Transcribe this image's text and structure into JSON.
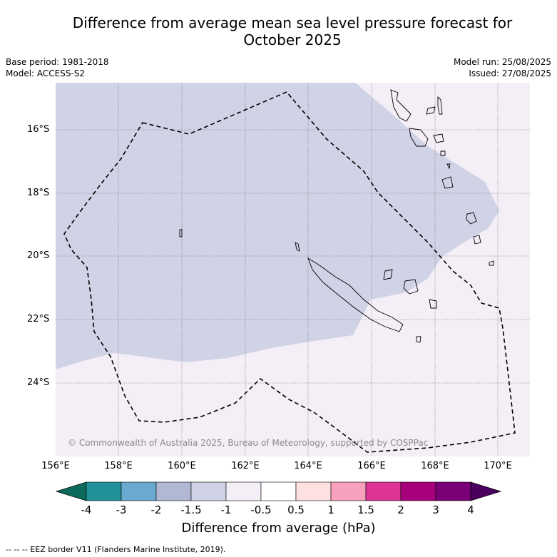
{
  "title_line1": "Difference from average mean sea level pressure forecast for",
  "title_line2": "October 2025",
  "base_period": "Base period: 1981-2018",
  "model": "Model: ACCESS-S2",
  "model_run": "Model run: 25/08/2025",
  "issued": "Issued: 27/08/2025",
  "copyright": "© Commonwealth of Australia 2025, Bureau of Meteorology, supported by COSPPac",
  "lat_labels": [
    "16°S",
    "18°S",
    "20°S",
    "22°S",
    "24°S"
  ],
  "lon_labels": [
    "156°E",
    "158°E",
    "160°E",
    "162°E",
    "164°E",
    "166°E",
    "168°E",
    "170°E"
  ],
  "colorbar": {
    "ticks": [
      "-4",
      "-3",
      "-2",
      "-1.5",
      "-1",
      "-0.5",
      "0.5",
      "1",
      "1.5",
      "2",
      "3",
      "4"
    ],
    "colors": [
      "#0d6b5e",
      "#1f9198",
      "#6aa9d0",
      "#b0b8d4",
      "#d0d2e6",
      "#f4eef6",
      "#ffffff",
      "#fde0e0",
      "#f7a1bd",
      "#dc3596",
      "#a8007c",
      "#7a0078",
      "#4b005d"
    ],
    "label": "Difference from average (hPa)"
  },
  "footer": "--  --  -- EEZ border V11 (Flanders Marine Institute, 2019).",
  "fills": {
    "negative": "#d0d2e6",
    "near_zero": "#f4eef6"
  }
}
